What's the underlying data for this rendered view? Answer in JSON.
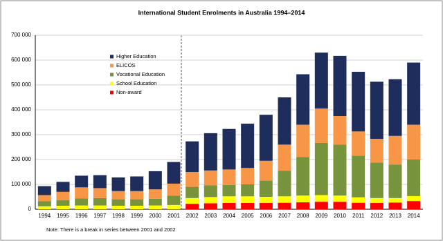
{
  "chart_data": {
    "type": "stacked-bar",
    "title": "International Student Enrolments in Australia 1994–2014",
    "note": "Note: There is a break in series between 2001 and 2002",
    "categories": [
      "1994",
      "1995",
      "1996",
      "1997",
      "1998",
      "1999",
      "2000",
      "2001",
      "2002",
      "2003",
      "2004",
      "2005",
      "2006",
      "2007",
      "2008",
      "2009",
      "2010",
      "2011",
      "2012",
      "2013",
      "2014"
    ],
    "series": [
      {
        "name": "Non-award",
        "color": "#ff0000",
        "values": [
          null,
          null,
          null,
          null,
          null,
          null,
          null,
          null,
          22000,
          24000,
          25000,
          25000,
          25000,
          26000,
          28000,
          30000,
          30000,
          26000,
          25000,
          27000,
          33000
        ]
      },
      {
        "name": "School Education",
        "color": "#ffff00",
        "values": [
          12000,
          14000,
          15000,
          15000,
          14000,
          14000,
          15000,
          17000,
          23000,
          25000,
          27000,
          27000,
          25000,
          26000,
          27000,
          27000,
          25000,
          22000,
          20000,
          18000,
          20000
        ]
      },
      {
        "name": "Vocational Education",
        "color": "#77933c",
        "values": [
          20000,
          22000,
          28000,
          30000,
          26000,
          26000,
          27000,
          38000,
          45000,
          47000,
          46000,
          48000,
          65000,
          103000,
          155000,
          210000,
          205000,
          167000,
          143000,
          135000,
          147000
        ]
      },
      {
        "name": "ELICOS",
        "color": "#f79646",
        "values": [
          25000,
          34000,
          45000,
          40000,
          33000,
          33000,
          38000,
          48000,
          60000,
          60000,
          62000,
          66000,
          80000,
          105000,
          130000,
          138000,
          115000,
          98000,
          95000,
          115000,
          140000
        ]
      },
      {
        "name": "Higher Education",
        "color": "#1f2d5c",
        "values": [
          36000,
          40000,
          47000,
          52000,
          55000,
          59000,
          73000,
          87000,
          123000,
          150000,
          163000,
          178000,
          185000,
          190000,
          203000,
          225000,
          242000,
          240000,
          230000,
          228000,
          250000
        ]
      }
    ],
    "ylim": [
      0,
      700000
    ],
    "yticks": [
      0,
      {
        "value": 100000,
        "label": "100 000"
      },
      {
        "value": 200000,
        "label": "200 000"
      },
      {
        "value": 300000,
        "label": "300 000"
      },
      {
        "value": 400000,
        "label": "400 000"
      },
      {
        "value": 500000,
        "label": "500 000"
      },
      {
        "value": 600000,
        "label": "600 000"
      },
      {
        "value": 700000,
        "label": "700 000"
      }
    ],
    "grid": true
  }
}
